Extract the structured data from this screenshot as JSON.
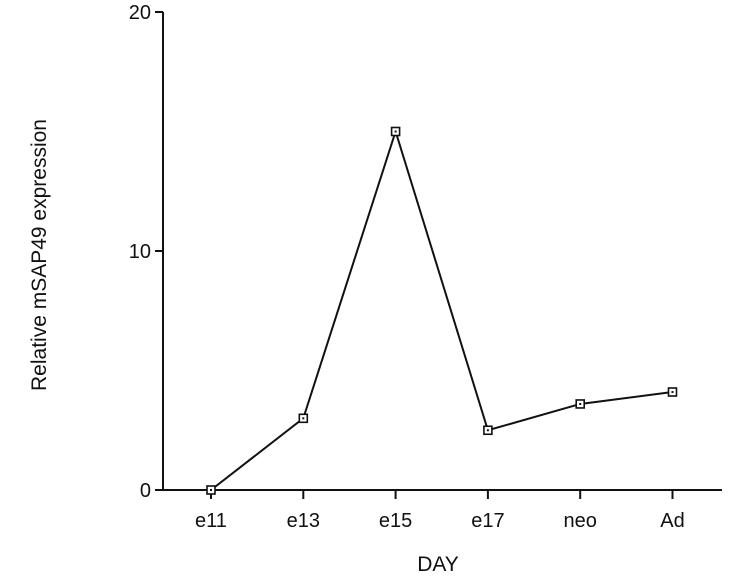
{
  "chart_data": {
    "type": "line",
    "title": "",
    "xlabel": "DAY",
    "ylabel": "Relative mSAP49 expression",
    "categories": [
      "e11",
      "e13",
      "e15",
      "e17",
      "neo",
      "Ad"
    ],
    "series": [
      {
        "values": [
          0,
          3,
          15,
          2.5,
          3.6,
          4.1
        ]
      }
    ],
    "ylim": [
      0,
      20
    ],
    "yticks": [
      0,
      10,
      20
    ],
    "grid": false,
    "marker": "open-square",
    "colors": {
      "line": "#111111",
      "marker_fill": "#ffffff"
    }
  }
}
